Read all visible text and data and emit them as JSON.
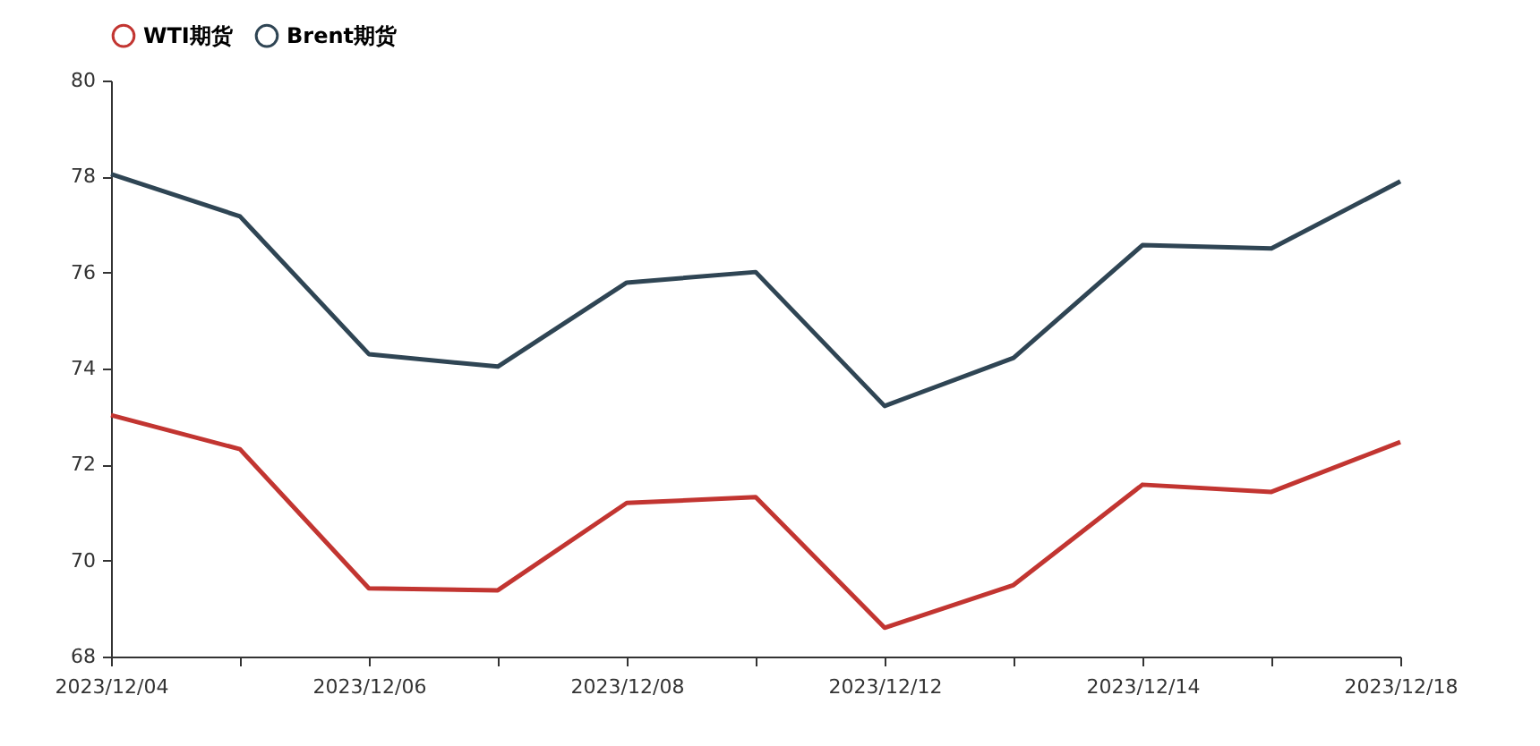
{
  "chart_data": {
    "type": "line",
    "categories": [
      "2023/12/04",
      null,
      "2023/12/06",
      null,
      "2023/12/08",
      null,
      "2023/12/12",
      null,
      "2023/12/14",
      null,
      "2023/12/18"
    ],
    "series": [
      {
        "name": "WTI期货",
        "color": "#c23531",
        "values": [
          73.03,
          72.32,
          69.42,
          69.38,
          71.2,
          71.32,
          68.6,
          69.49,
          71.58,
          71.43,
          72.47
        ]
      },
      {
        "name": "Brent期货",
        "color": "#2f4554",
        "values": [
          78.05,
          77.17,
          74.3,
          74.04,
          75.79,
          76.01,
          73.22,
          74.22,
          76.57,
          76.5,
          77.9
        ]
      }
    ],
    "ylim": [
      68,
      80
    ],
    "yticks": [
      68,
      70,
      72,
      74,
      76,
      78,
      80
    ],
    "grid": false,
    "legend": "top"
  }
}
